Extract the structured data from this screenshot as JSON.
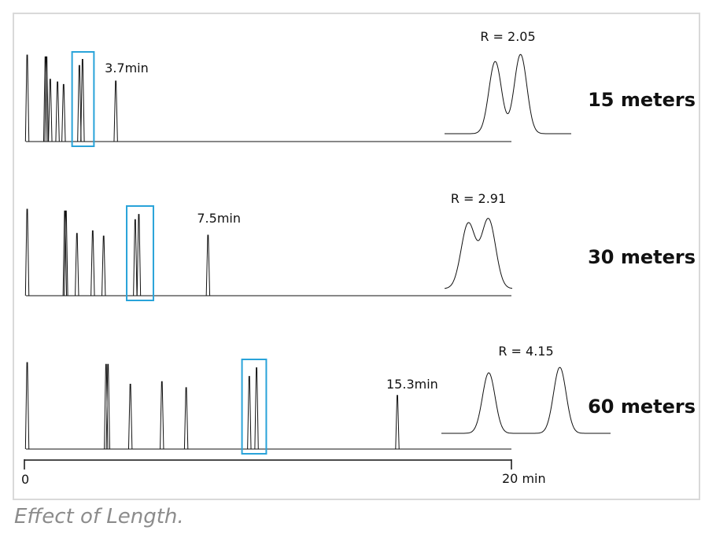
{
  "caption": "Effect of Length.",
  "chart_data": {
    "type": "line",
    "axis": {
      "min": 0,
      "max": 20,
      "min_label": "0",
      "max_label": "20 min"
    },
    "colors": {
      "trace": "#111111",
      "highlight": "#29a3d9",
      "frame": "#d9d9d9",
      "caption": "#8c8c8c"
    },
    "panels": [
      {
        "length_label": "15 meters",
        "last_peak_label": "3.7min",
        "resolution_label": "R = 2.05",
        "peaks": [
          {
            "t": 0.05,
            "h": 1.0
          },
          {
            "t": 0.8,
            "h": 0.98
          },
          {
            "t": 0.85,
            "h": 0.98
          },
          {
            "t": 1.0,
            "h": 0.72
          },
          {
            "t": 1.3,
            "h": 0.69
          },
          {
            "t": 1.55,
            "h": 0.66
          },
          {
            "t": 2.2,
            "h": 0.88
          },
          {
            "t": 2.33,
            "h": 0.95
          },
          {
            "t": 3.7,
            "h": 0.7
          }
        ],
        "highlight_range": [
          1.9,
          2.8
        ],
        "inset_peaks": [
          {
            "pos": 0.4,
            "h": 0.82
          },
          {
            "pos": 0.6,
            "h": 0.9
          }
        ]
      },
      {
        "length_label": "30 meters",
        "last_peak_label": "7.5min",
        "resolution_label": "R = 2.91",
        "peaks": [
          {
            "t": 0.05,
            "h": 1.0
          },
          {
            "t": 1.6,
            "h": 0.98
          },
          {
            "t": 1.65,
            "h": 0.98
          },
          {
            "t": 2.1,
            "h": 0.72
          },
          {
            "t": 2.75,
            "h": 0.75
          },
          {
            "t": 3.2,
            "h": 0.69
          },
          {
            "t": 4.5,
            "h": 0.88
          },
          {
            "t": 4.65,
            "h": 0.94
          },
          {
            "t": 7.5,
            "h": 0.7
          }
        ],
        "highlight_range": [
          4.15,
          5.25
        ],
        "inset_peaks": [
          {
            "pos": 0.35,
            "h": 0.75
          },
          {
            "pos": 0.65,
            "h": 0.8
          }
        ]
      },
      {
        "length_label": "60 meters",
        "last_peak_label": "15.3min",
        "resolution_label": "R = 4.15",
        "peaks": [
          {
            "t": 0.05,
            "h": 1.0
          },
          {
            "t": 3.3,
            "h": 0.98
          },
          {
            "t": 3.38,
            "h": 0.98
          },
          {
            "t": 4.3,
            "h": 0.75
          },
          {
            "t": 5.6,
            "h": 0.78
          },
          {
            "t": 6.6,
            "h": 0.71
          },
          {
            "t": 9.2,
            "h": 0.84
          },
          {
            "t": 9.5,
            "h": 0.94
          },
          {
            "t": 15.3,
            "h": 0.62
          }
        ],
        "highlight_range": [
          8.9,
          9.9
        ],
        "inset_peaks": [
          {
            "pos": 0.28,
            "h": 0.77
          },
          {
            "pos": 0.7,
            "h": 0.84
          }
        ]
      }
    ]
  }
}
